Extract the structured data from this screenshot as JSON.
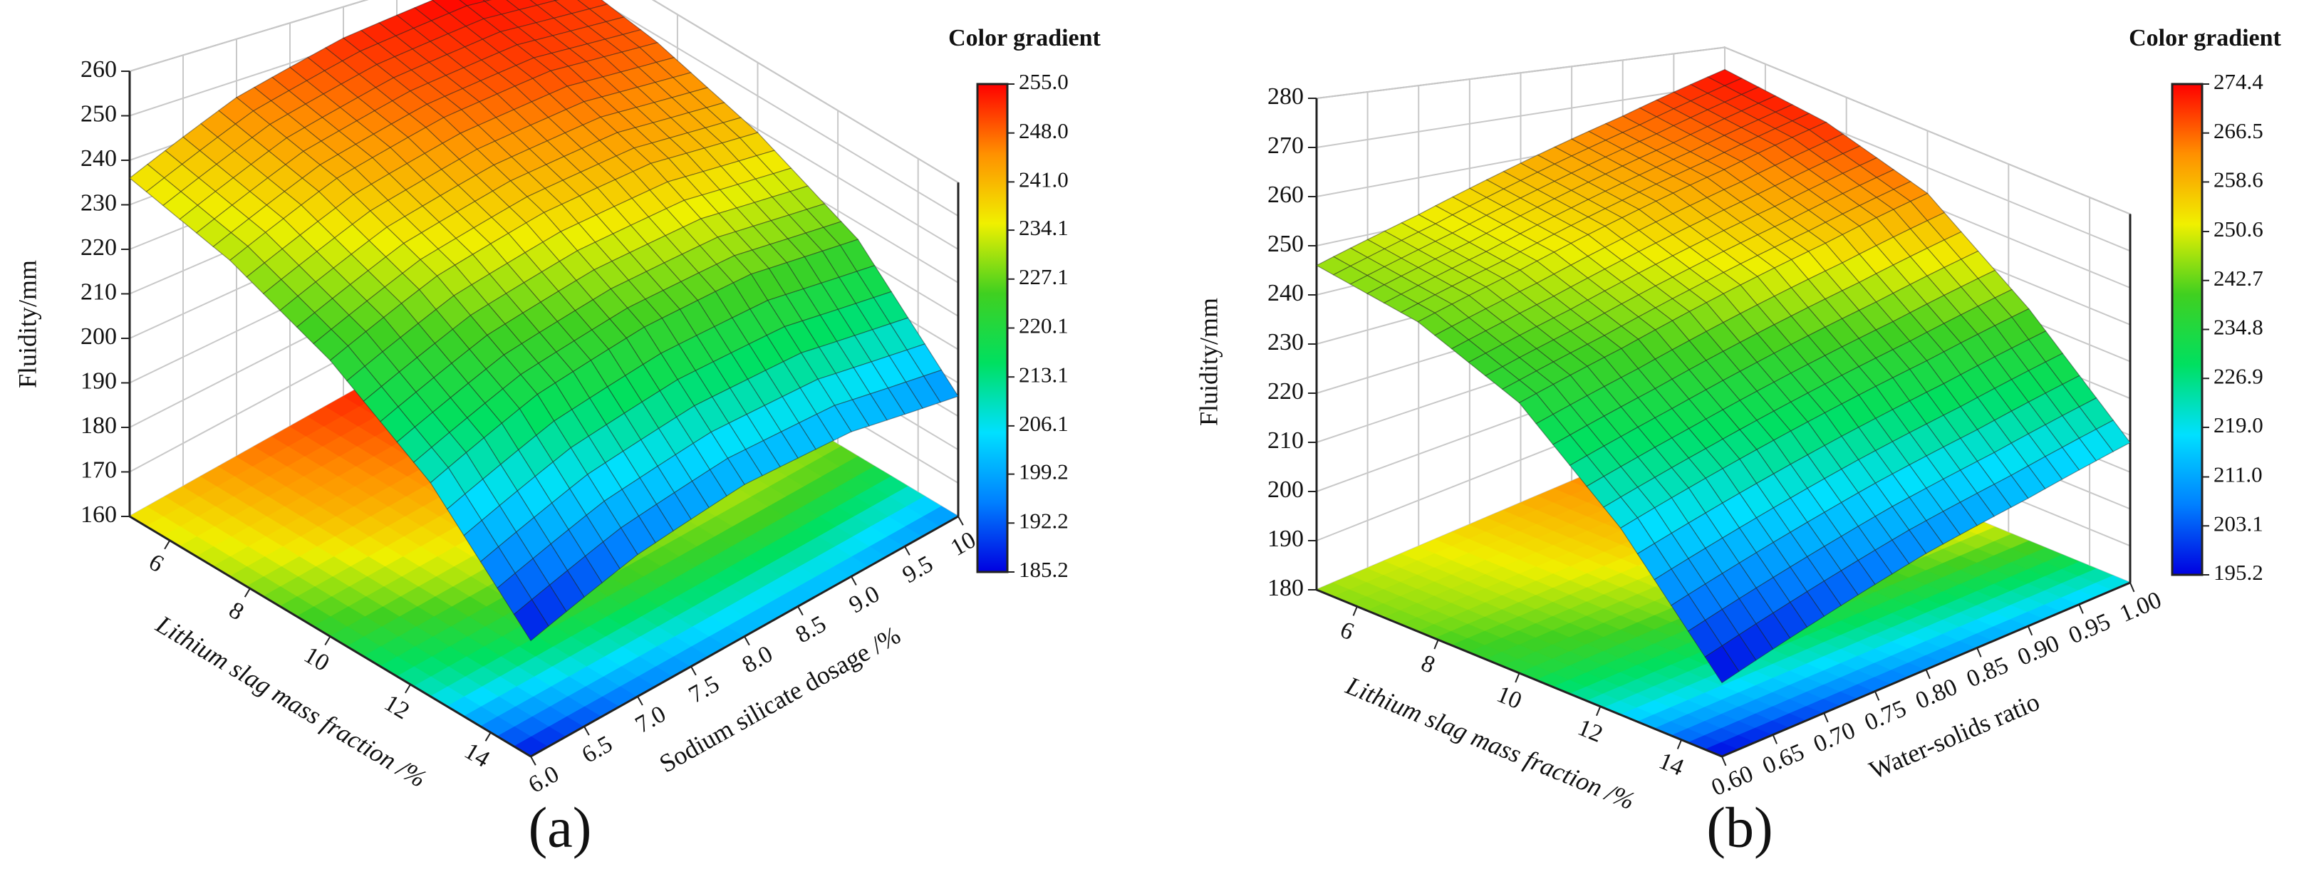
{
  "chart_data": [
    {
      "type": "surface",
      "label": "(a)",
      "xlabel": "Lithium slag mass fraction /%",
      "ylabel": "Sodium silicate dosage /%",
      "zlabel": "Fluidity/mm",
      "colorbar_title": "Color gradient",
      "x": [
        5,
        7.5,
        10,
        12.5,
        15
      ],
      "y": [
        6,
        7,
        8,
        9,
        10
      ],
      "z": [
        [
          236,
          246,
          252,
          255,
          253
        ],
        [
          231,
          241,
          247,
          250,
          248
        ],
        [
          222,
          232,
          238,
          241,
          239
        ],
        [
          208,
          218,
          224,
          227,
          225
        ],
        [
          186,
          194,
          199,
          200,
          196
        ]
      ],
      "xlim": [
        5,
        15
      ],
      "xticks": [
        6,
        8,
        10,
        12,
        14
      ],
      "ylim": [
        6,
        10
      ],
      "yticks": [
        {
          "value": 6,
          "label": "6.0"
        },
        6.5,
        {
          "value": 7,
          "label": "7.0"
        },
        7.5,
        {
          "value": 8,
          "label": "8.0"
        },
        8.5,
        {
          "value": 9,
          "label": "9.0"
        },
        9.5,
        {
          "value": 10,
          "label": "10.0"
        }
      ],
      "zlim": [
        160,
        260
      ],
      "zticks": [
        160,
        170,
        180,
        190,
        200,
        210,
        220,
        230,
        240,
        250,
        260
      ],
      "clim": [
        185.2,
        255.0
      ],
      "cticks": [
        185.2,
        192.2,
        199.2,
        206.1,
        213.1,
        220.1,
        227.1,
        234.1,
        {
          "value": 241,
          "label": "241.0"
        },
        {
          "value": 248,
          "label": "248.0"
        },
        {
          "value": 255,
          "label": "255.0"
        }
      ],
      "colormap": [
        "#0000e0",
        "#0080ff",
        "#00e0ff",
        "#00e060",
        "#40d020",
        "#f0f000",
        "#ff9000",
        "#ff0000"
      ]
    },
    {
      "type": "surface",
      "label": "(b)",
      "xlabel": "Lithium slag mass fraction /%",
      "ylabel": "Water-solids ratio",
      "zlabel": "Fluidity/mm",
      "colorbar_title": "Color gradient",
      "x": [
        5,
        7.5,
        10,
        12.5,
        15
      ],
      "y": [
        0.6,
        0.7,
        0.8,
        0.9,
        1.0
      ],
      "z": [
        [
          246,
          252,
          259,
          266,
          274
        ],
        [
          243,
          249,
          256,
          263,
          271
        ],
        [
          235,
          241,
          248,
          255,
          263
        ],
        [
          218,
          224,
          230,
          236,
          243
        ],
        [
          195,
          201,
          207,
          212,
          218
        ]
      ],
      "xlim": [
        5,
        15
      ],
      "xticks": [
        6,
        8,
        10,
        12,
        14
      ],
      "ylim": [
        0.6,
        1.0
      ],
      "yticks": [
        {
          "value": 0.6,
          "label": "0.60"
        },
        0.65,
        {
          "value": 0.7,
          "label": "0.70"
        },
        0.75,
        {
          "value": 0.8,
          "label": "0.80"
        },
        0.85,
        {
          "value": 0.9,
          "label": "0.90"
        },
        0.95,
        {
          "value": 1,
          "label": "1.00"
        }
      ],
      "zlim": [
        180,
        280
      ],
      "zticks": [
        180,
        190,
        200,
        210,
        220,
        230,
        240,
        250,
        260,
        270,
        280
      ],
      "clim": [
        195.2,
        274.4
      ],
      "cticks": [
        195.2,
        203.1,
        {
          "value": 211,
          "label": "211.0"
        },
        {
          "value": 219,
          "label": "219.0"
        },
        226.9,
        234.8,
        242.7,
        250.6,
        258.6,
        266.5,
        274.4
      ],
      "colormap": [
        "#0000e0",
        "#0080ff",
        "#00e0ff",
        "#00e060",
        "#40d020",
        "#f0f000",
        "#ff9000",
        "#ff0000"
      ]
    }
  ]
}
